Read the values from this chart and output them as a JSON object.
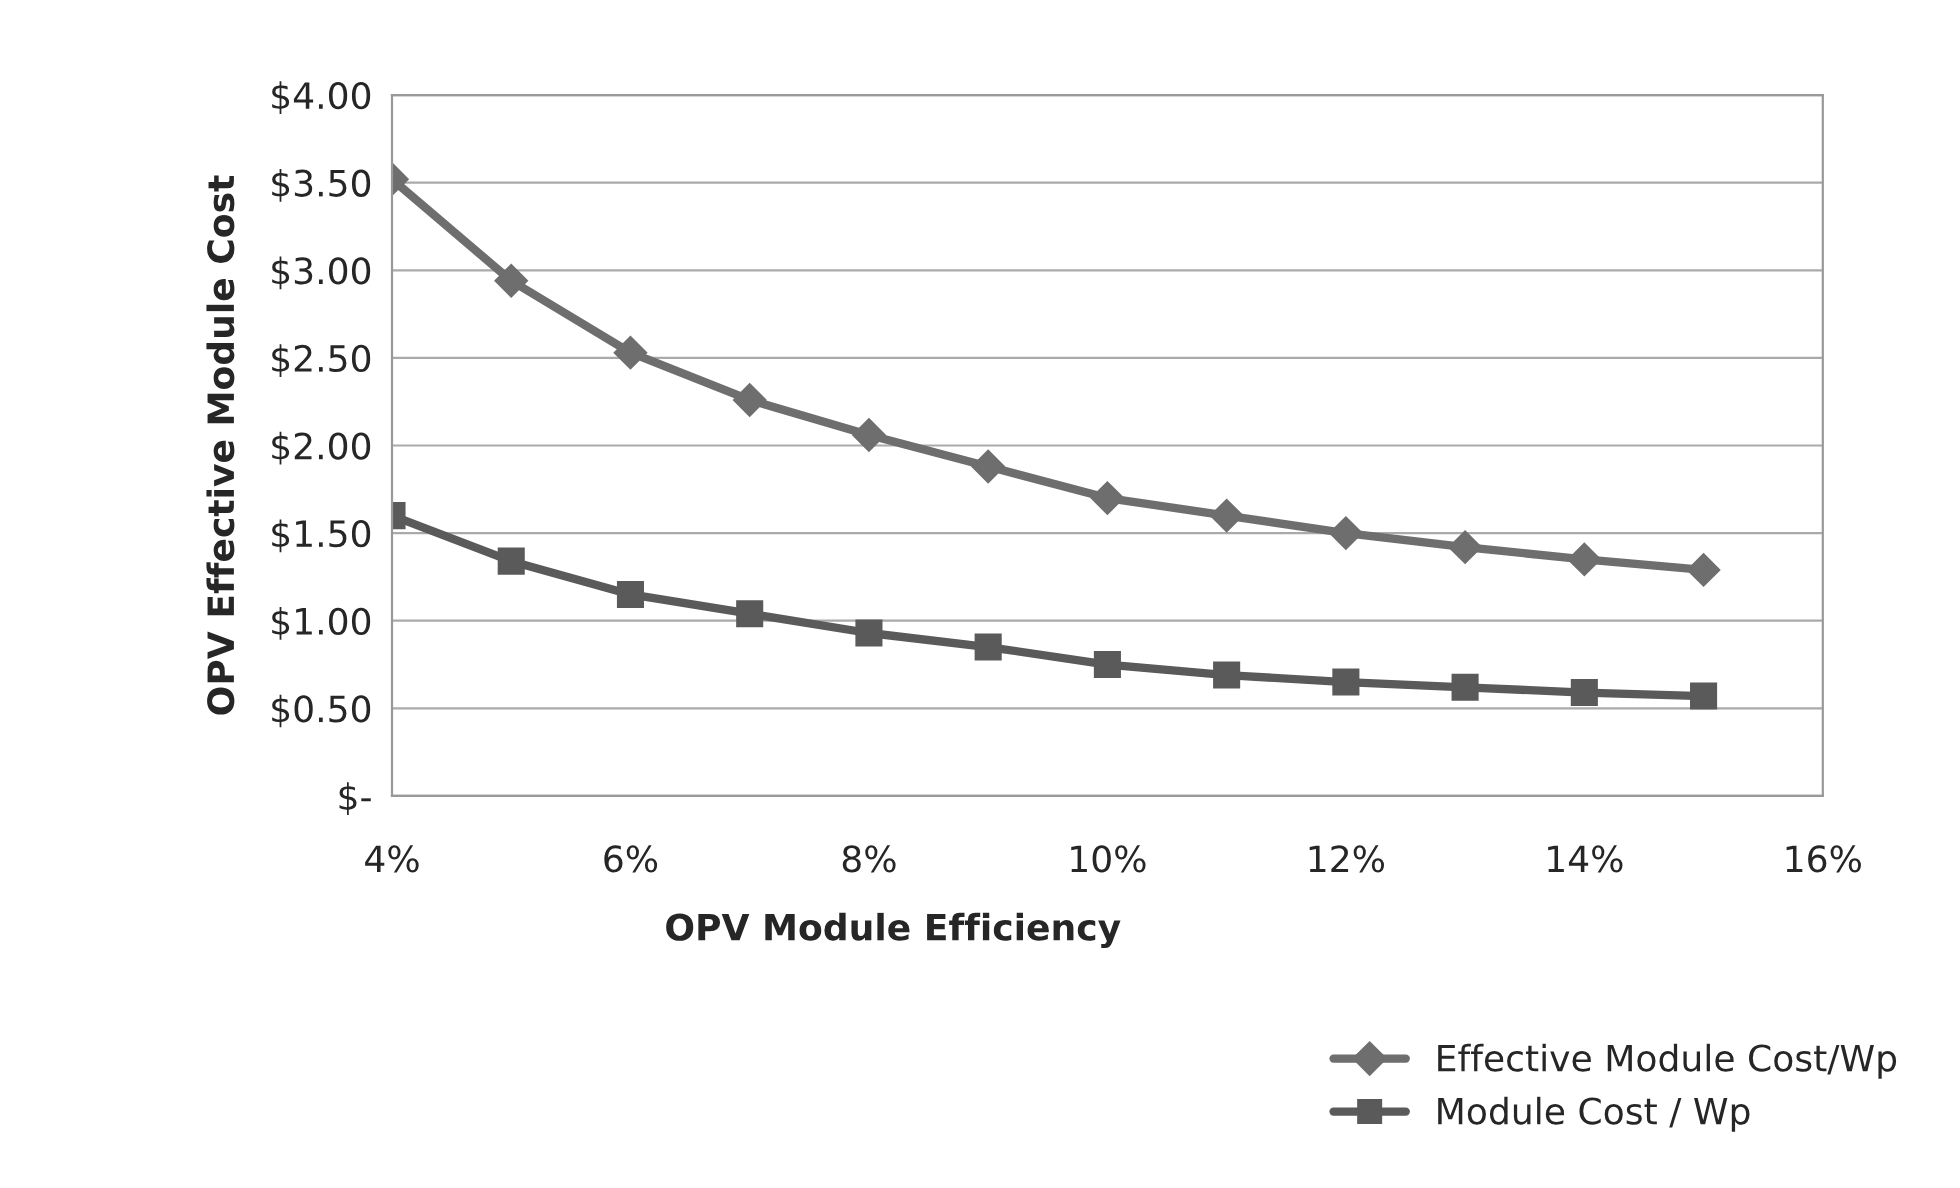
{
  "chart_data": {
    "type": "line",
    "xlabel": "OPV Module Efficiency",
    "ylabel": "OPV Effective Module Cost",
    "x": [
      4,
      5,
      6,
      7,
      8,
      9,
      10,
      11,
      12,
      13,
      14,
      15
    ],
    "series": [
      {
        "name": "Effective Module Cost/Wp",
        "color": "#6e6e6e",
        "marker": "diamond",
        "values": [
          3.52,
          2.94,
          2.53,
          2.26,
          2.06,
          1.88,
          1.7,
          1.6,
          1.5,
          1.42,
          1.35,
          1.29
        ]
      },
      {
        "name": "Module Cost / Wp",
        "color": "#5a5a5a",
        "marker": "square",
        "values": [
          1.6,
          1.34,
          1.15,
          1.04,
          0.93,
          0.85,
          0.75,
          0.69,
          0.65,
          0.62,
          0.59,
          0.57
        ]
      }
    ],
    "xlim": [
      4,
      16
    ],
    "xticks": [
      {
        "value": 4,
        "label": "4%"
      },
      {
        "value": 6,
        "label": "6%"
      },
      {
        "value": 8,
        "label": "8%"
      },
      {
        "value": 10,
        "label": "10%"
      },
      {
        "value": 12,
        "label": "12%"
      },
      {
        "value": 14,
        "label": "14%"
      },
      {
        "value": 16,
        "label": "16%"
      }
    ],
    "ylim": [
      0,
      4
    ],
    "yticks": [
      {
        "value": 0,
        "label": "$-"
      },
      {
        "value": 0.5,
        "label": "$0.50"
      },
      {
        "value": 1,
        "label": "$1.00"
      },
      {
        "value": 1.5,
        "label": "$1.50"
      },
      {
        "value": 2,
        "label": "$2.00"
      },
      {
        "value": 2.5,
        "label": "$2.50"
      },
      {
        "value": 3,
        "label": "$3.00"
      },
      {
        "value": 3.5,
        "label": "$3.50"
      },
      {
        "value": 4,
        "label": "$4.00"
      }
    ],
    "grid": "y",
    "legend": "bottom right",
    "line_style": "solid"
  }
}
